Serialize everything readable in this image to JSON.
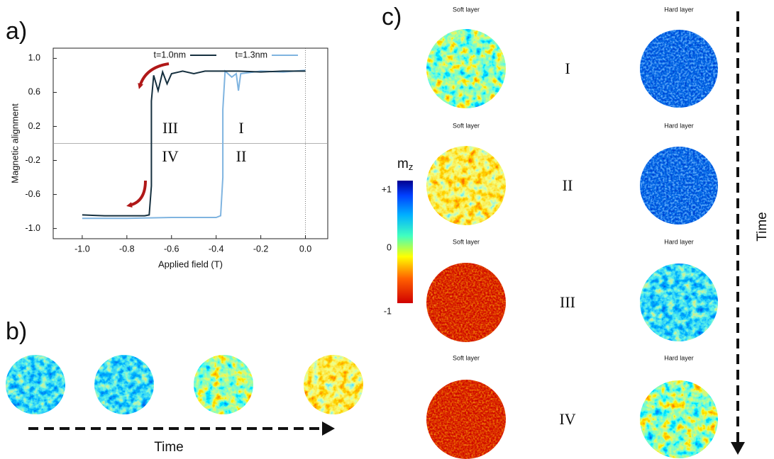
{
  "chart_data": {
    "type": "line",
    "xlabel": "Applied field (T)",
    "ylabel": "Magnetic alignment",
    "xlim": [
      -1.13,
      0.1
    ],
    "ylim": [
      -1.12,
      1.12
    ],
    "xticks": [
      {
        "value": -1,
        "label": "-1.0"
      },
      -0.8,
      -0.6,
      -0.4,
      -0.2,
      {
        "value": 0,
        "label": "0.0"
      }
    ],
    "yticks": [
      {
        "value": 1,
        "label": "1.0"
      },
      0.6,
      0.2,
      -0.2,
      -0.6,
      {
        "value": -1,
        "label": "-1.0"
      }
    ],
    "legend": "top",
    "annotations": [
      "III",
      "IV",
      "I",
      "II"
    ],
    "series": [
      {
        "name": "t=1.0nm",
        "color": "#16303f",
        "x": [
          -1.0,
          -0.9,
          -0.8,
          -0.72,
          -0.7,
          -0.69,
          -0.69,
          -0.68,
          -0.66,
          -0.64,
          -0.62,
          -0.6,
          -0.55,
          -0.5,
          -0.45,
          -0.4,
          -0.3,
          -0.2,
          -0.1,
          0.0
        ],
        "values": [
          -0.84,
          -0.85,
          -0.85,
          -0.85,
          -0.84,
          -0.5,
          0.5,
          0.8,
          0.62,
          0.84,
          0.7,
          0.82,
          0.85,
          0.82,
          0.85,
          0.85,
          0.85,
          0.84,
          0.85,
          0.85
        ]
      },
      {
        "name": "t=1.3nm",
        "color": "#7fb4e0",
        "x": [
          -1.0,
          -0.8,
          -0.6,
          -0.4,
          -0.38,
          -0.37,
          -0.37,
          -0.36,
          -0.33,
          -0.31,
          -0.3,
          -0.29,
          -0.2,
          -0.1,
          0.0
        ],
        "values": [
          -0.88,
          -0.88,
          -0.87,
          -0.87,
          -0.85,
          -0.4,
          0.4,
          0.85,
          0.78,
          0.82,
          0.62,
          0.82,
          0.85,
          0.84,
          0.86
        ]
      }
    ]
  },
  "panels": {
    "a": "a)",
    "b": "b)",
    "c": "c)",
    "b_time": "Time",
    "c_time": "Time",
    "colorbar": {
      "label": "m",
      "label_sub": "z",
      "ticks": [
        "+1",
        "0",
        "-1"
      ]
    },
    "rows": [
      {
        "label": "I",
        "soft": "Soft layer",
        "hard": "Hard layer"
      },
      {
        "label": "II",
        "soft": "Soft layer",
        "hard": "Hard layer"
      },
      {
        "label": "III",
        "soft": "Soft layer",
        "hard": "Hard layer"
      },
      {
        "label": "IV",
        "soft": "Soft layer",
        "hard": "Hard layer"
      }
    ]
  }
}
